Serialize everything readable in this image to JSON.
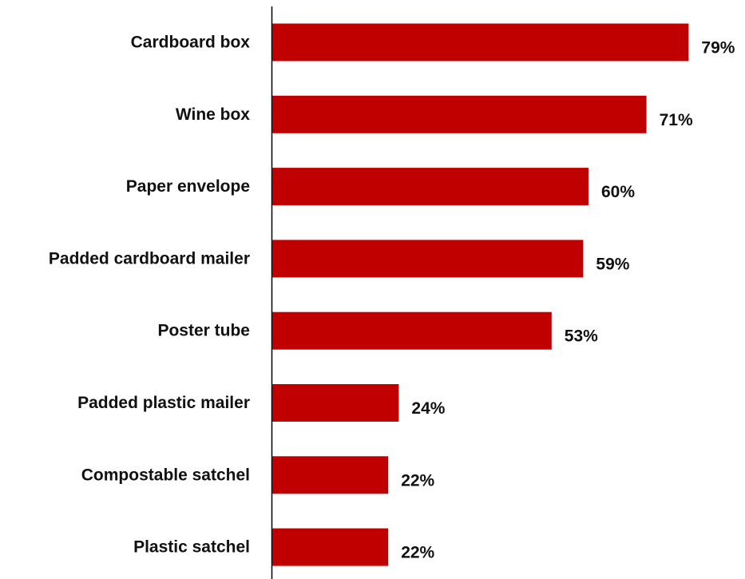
{
  "chart_data": {
    "type": "bar",
    "orientation": "horizontal",
    "categories": [
      "Cardboard box",
      "Wine box",
      "Paper envelope",
      "Padded cardboard mailer",
      "Poster tube",
      "Padded plastic mailer",
      "Compostable satchel",
      "Plastic satchel"
    ],
    "values": [
      79,
      71,
      60,
      59,
      53,
      24,
      22,
      22
    ],
    "value_labels": [
      "79%",
      "71%",
      "60%",
      "59%",
      "53%",
      "24%",
      "22%",
      "22%"
    ],
    "unit": "%",
    "xlim": [
      0,
      100
    ],
    "grid": false,
    "legend": "none",
    "bar_color": "#c00000"
  }
}
